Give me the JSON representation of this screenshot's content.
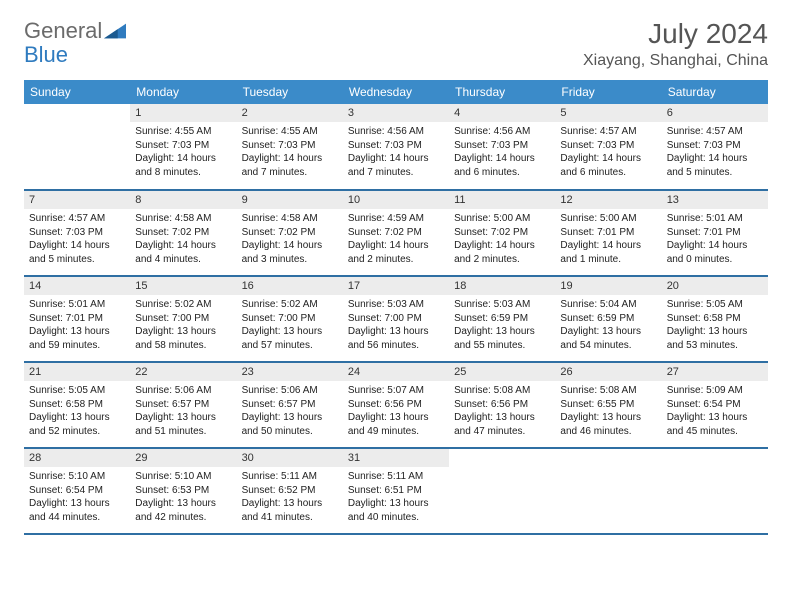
{
  "logo": {
    "text1": "General",
    "text2": "Blue"
  },
  "title": "July 2024",
  "location": "Xiayang, Shanghai, China",
  "colors": {
    "header_bg": "#3b8bc9",
    "header_text": "#ffffff",
    "daynum_bg": "#ececec",
    "rule": "#2f6fa3",
    "logo_gray": "#6b6b6b",
    "logo_blue": "#2f7bbf"
  },
  "typography": {
    "title_fontsize": 28,
    "location_fontsize": 16,
    "header_fontsize": 12,
    "daynum_fontsize": 11,
    "body_fontsize": 10
  },
  "weekdays": [
    "Sunday",
    "Monday",
    "Tuesday",
    "Wednesday",
    "Thursday",
    "Friday",
    "Saturday"
  ],
  "weeks": [
    [
      null,
      {
        "n": "1",
        "sr": "Sunrise: 4:55 AM",
        "ss": "Sunset: 7:03 PM",
        "dl": "Daylight: 14 hours and 8 minutes."
      },
      {
        "n": "2",
        "sr": "Sunrise: 4:55 AM",
        "ss": "Sunset: 7:03 PM",
        "dl": "Daylight: 14 hours and 7 minutes."
      },
      {
        "n": "3",
        "sr": "Sunrise: 4:56 AM",
        "ss": "Sunset: 7:03 PM",
        "dl": "Daylight: 14 hours and 7 minutes."
      },
      {
        "n": "4",
        "sr": "Sunrise: 4:56 AM",
        "ss": "Sunset: 7:03 PM",
        "dl": "Daylight: 14 hours and 6 minutes."
      },
      {
        "n": "5",
        "sr": "Sunrise: 4:57 AM",
        "ss": "Sunset: 7:03 PM",
        "dl": "Daylight: 14 hours and 6 minutes."
      },
      {
        "n": "6",
        "sr": "Sunrise: 4:57 AM",
        "ss": "Sunset: 7:03 PM",
        "dl": "Daylight: 14 hours and 5 minutes."
      }
    ],
    [
      {
        "n": "7",
        "sr": "Sunrise: 4:57 AM",
        "ss": "Sunset: 7:03 PM",
        "dl": "Daylight: 14 hours and 5 minutes."
      },
      {
        "n": "8",
        "sr": "Sunrise: 4:58 AM",
        "ss": "Sunset: 7:02 PM",
        "dl": "Daylight: 14 hours and 4 minutes."
      },
      {
        "n": "9",
        "sr": "Sunrise: 4:58 AM",
        "ss": "Sunset: 7:02 PM",
        "dl": "Daylight: 14 hours and 3 minutes."
      },
      {
        "n": "10",
        "sr": "Sunrise: 4:59 AM",
        "ss": "Sunset: 7:02 PM",
        "dl": "Daylight: 14 hours and 2 minutes."
      },
      {
        "n": "11",
        "sr": "Sunrise: 5:00 AM",
        "ss": "Sunset: 7:02 PM",
        "dl": "Daylight: 14 hours and 2 minutes."
      },
      {
        "n": "12",
        "sr": "Sunrise: 5:00 AM",
        "ss": "Sunset: 7:01 PM",
        "dl": "Daylight: 14 hours and 1 minute."
      },
      {
        "n": "13",
        "sr": "Sunrise: 5:01 AM",
        "ss": "Sunset: 7:01 PM",
        "dl": "Daylight: 14 hours and 0 minutes."
      }
    ],
    [
      {
        "n": "14",
        "sr": "Sunrise: 5:01 AM",
        "ss": "Sunset: 7:01 PM",
        "dl": "Daylight: 13 hours and 59 minutes."
      },
      {
        "n": "15",
        "sr": "Sunrise: 5:02 AM",
        "ss": "Sunset: 7:00 PM",
        "dl": "Daylight: 13 hours and 58 minutes."
      },
      {
        "n": "16",
        "sr": "Sunrise: 5:02 AM",
        "ss": "Sunset: 7:00 PM",
        "dl": "Daylight: 13 hours and 57 minutes."
      },
      {
        "n": "17",
        "sr": "Sunrise: 5:03 AM",
        "ss": "Sunset: 7:00 PM",
        "dl": "Daylight: 13 hours and 56 minutes."
      },
      {
        "n": "18",
        "sr": "Sunrise: 5:03 AM",
        "ss": "Sunset: 6:59 PM",
        "dl": "Daylight: 13 hours and 55 minutes."
      },
      {
        "n": "19",
        "sr": "Sunrise: 5:04 AM",
        "ss": "Sunset: 6:59 PM",
        "dl": "Daylight: 13 hours and 54 minutes."
      },
      {
        "n": "20",
        "sr": "Sunrise: 5:05 AM",
        "ss": "Sunset: 6:58 PM",
        "dl": "Daylight: 13 hours and 53 minutes."
      }
    ],
    [
      {
        "n": "21",
        "sr": "Sunrise: 5:05 AM",
        "ss": "Sunset: 6:58 PM",
        "dl": "Daylight: 13 hours and 52 minutes."
      },
      {
        "n": "22",
        "sr": "Sunrise: 5:06 AM",
        "ss": "Sunset: 6:57 PM",
        "dl": "Daylight: 13 hours and 51 minutes."
      },
      {
        "n": "23",
        "sr": "Sunrise: 5:06 AM",
        "ss": "Sunset: 6:57 PM",
        "dl": "Daylight: 13 hours and 50 minutes."
      },
      {
        "n": "24",
        "sr": "Sunrise: 5:07 AM",
        "ss": "Sunset: 6:56 PM",
        "dl": "Daylight: 13 hours and 49 minutes."
      },
      {
        "n": "25",
        "sr": "Sunrise: 5:08 AM",
        "ss": "Sunset: 6:56 PM",
        "dl": "Daylight: 13 hours and 47 minutes."
      },
      {
        "n": "26",
        "sr": "Sunrise: 5:08 AM",
        "ss": "Sunset: 6:55 PM",
        "dl": "Daylight: 13 hours and 46 minutes."
      },
      {
        "n": "27",
        "sr": "Sunrise: 5:09 AM",
        "ss": "Sunset: 6:54 PM",
        "dl": "Daylight: 13 hours and 45 minutes."
      }
    ],
    [
      {
        "n": "28",
        "sr": "Sunrise: 5:10 AM",
        "ss": "Sunset: 6:54 PM",
        "dl": "Daylight: 13 hours and 44 minutes."
      },
      {
        "n": "29",
        "sr": "Sunrise: 5:10 AM",
        "ss": "Sunset: 6:53 PM",
        "dl": "Daylight: 13 hours and 42 minutes."
      },
      {
        "n": "30",
        "sr": "Sunrise: 5:11 AM",
        "ss": "Sunset: 6:52 PM",
        "dl": "Daylight: 13 hours and 41 minutes."
      },
      {
        "n": "31",
        "sr": "Sunrise: 5:11 AM",
        "ss": "Sunset: 6:51 PM",
        "dl": "Daylight: 13 hours and 40 minutes."
      },
      null,
      null,
      null
    ]
  ]
}
